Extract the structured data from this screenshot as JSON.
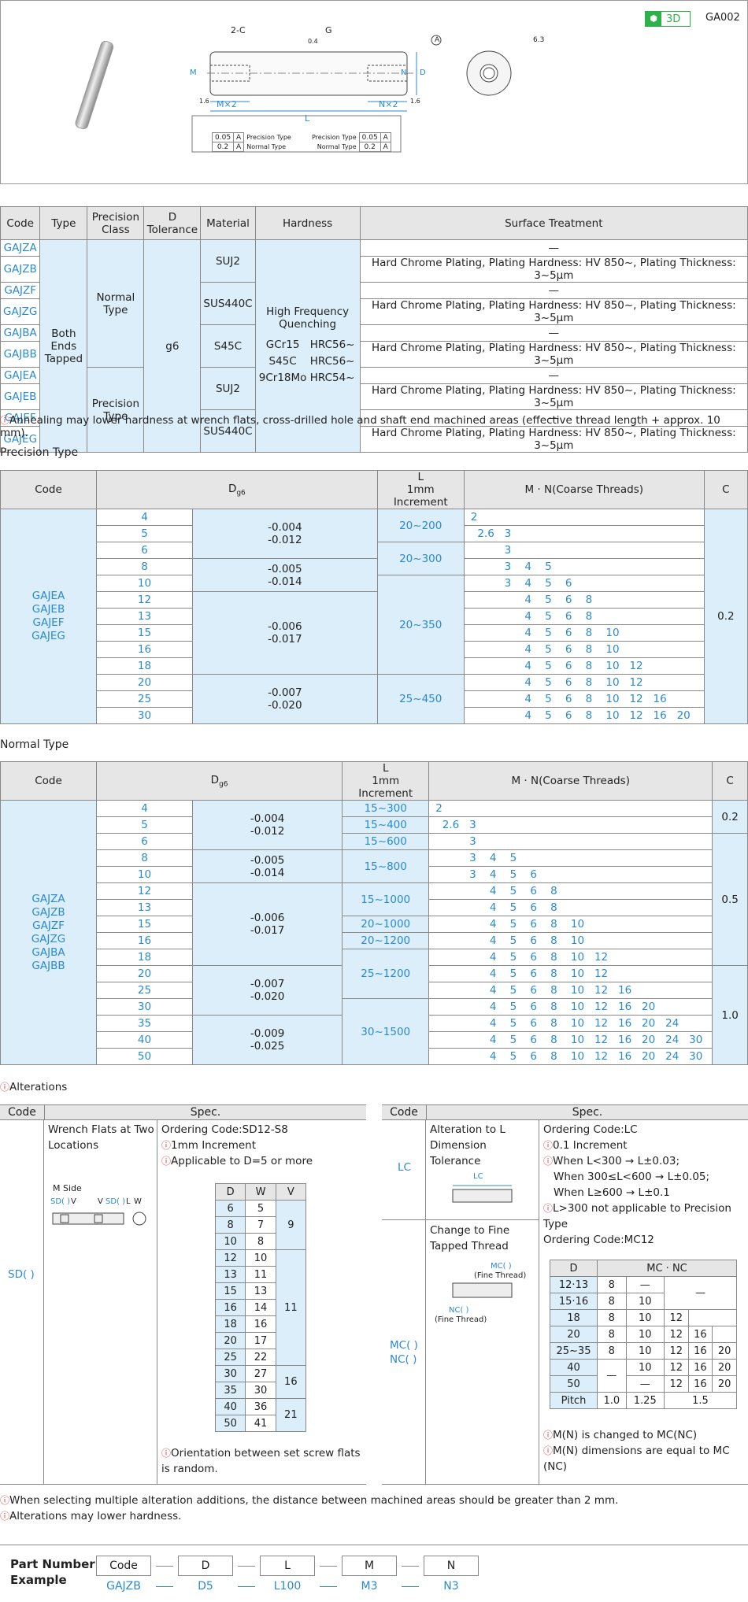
{
  "badge": {
    "label": "3D",
    "code": "GA002"
  },
  "drawing": {
    "chamfer": "2-C",
    "g": "G",
    "l": "L",
    "m": "M",
    "n": "N",
    "d": "D",
    "m2": "M×2",
    "n2": "N×2",
    "a": "A",
    "ra": "6.3",
    "r1": "0.4",
    "r2": "1.6",
    "r3": "1.6",
    "left_rows": [
      {
        "v": "0.05",
        "a": "A",
        "t": "Precision Type"
      },
      {
        "v": "0.2",
        "a": "A",
        "t": "Normal Type"
      }
    ],
    "right_rows": [
      {
        "t": "Precision Type",
        "v": "0.05",
        "a": "A"
      },
      {
        "t": "Normal Type",
        "v": "0.2",
        "a": "A"
      }
    ]
  },
  "spec_table": {
    "headers": [
      "Code",
      "Type",
      "Precision Class",
      "D Tolerance",
      "Material",
      "Hardness",
      "Surface Treatment"
    ],
    "codes": [
      "GAJZA",
      "GAJZB",
      "GAJZF",
      "GAJZG",
      "GAJBA",
      "GAJBB",
      "GAJEA",
      "GAJEB",
      "GAJEF",
      "GAJEG"
    ],
    "type": "Both Ends Tapped",
    "class_normal": "Normal Type",
    "class_precision": "Precision Type",
    "tol": "g6",
    "materials": [
      "SUJ2",
      "SUS440C",
      "S45C",
      "SUJ2",
      "SUS440C"
    ],
    "hardness_title": "High Frequency Quenching",
    "hardness_rows": [
      [
        "GCr15",
        "HRC56~"
      ],
      [
        "S45C",
        "HRC56~"
      ],
      [
        "9Cr18Mo",
        "HRC54~"
      ]
    ],
    "surface": [
      "—",
      "Hard Chrome Plating, Plating Hardness: HV 850~, Plating Thickness: 3~5μm"
    ]
  },
  "notes": {
    "annealing": "Annealing may lower hardness at wrench flats, cross-drilled hole and shaft end machined areas (effective thread length + approx. 10 mm).",
    "precision_title": "Precision Type",
    "normal_title": "Normal Type",
    "alterations_title": "Alterations",
    "multi": "When selecting multiple alteration additions, the distance between machined areas should be greater than 2 mm.",
    "lower": "Alterations may lower hardness."
  },
  "dim_headers": {
    "code": "Code",
    "d": "D",
    "dsub": "g6",
    "l": "L",
    "l2": "1mm Increment",
    "mn": "M · N(Coarse Threads)",
    "c": "C"
  },
  "precision": {
    "codes": "GAJEA\nGAJEB\nGAJEF\nGAJEG",
    "d": [
      "4",
      "5",
      "6",
      "8",
      "10",
      "12",
      "13",
      "15",
      "16",
      "18",
      "20",
      "25",
      "30"
    ],
    "tol": [
      {
        "v": "-0.004\n-0.012",
        "s": 3
      },
      {
        "v": "-0.005\n-0.014",
        "s": 2
      },
      {
        "v": "-0.006\n-0.017",
        "s": 5
      },
      {
        "v": "-0.007\n-0.020",
        "s": 3
      }
    ],
    "l": [
      {
        "v": "20~200",
        "s": 2
      },
      {
        "v": "20~300",
        "s": 2
      },
      {
        "v": "20~350",
        "s": 6
      },
      {
        "v": "25~450",
        "s": 3
      }
    ],
    "mn": [
      "2",
      "  2.6   3",
      "          3",
      "          3    4    5",
      "          3    4    5    6",
      "                4    5    6    8",
      "                4    5    6    8",
      "                4    5    6    8    10",
      "                4    5    6    8    10",
      "                4    5    6    8    10   12",
      "                4    5    6    8    10   12",
      "                4    5    6    8    10   12   16",
      "                4    5    6    8    10   12   16   20"
    ],
    "c": "0.2"
  },
  "normal": {
    "codes": "GAJZA\nGAJZB\nGAJZF\nGAJZG\nGAJBA\nGAJBB",
    "d": [
      "4",
      "5",
      "6",
      "8",
      "10",
      "12",
      "13",
      "15",
      "16",
      "18",
      "20",
      "25",
      "30",
      "35",
      "40",
      "50"
    ],
    "tol": [
      {
        "v": "-0.004\n-0.012",
        "s": 3
      },
      {
        "v": "-0.005\n-0.014",
        "s": 2
      },
      {
        "v": "-0.006\n-0.017",
        "s": 5
      },
      {
        "v": "-0.007\n-0.020",
        "s": 3
      },
      {
        "v": "-0.009\n-0.025",
        "s": 3
      }
    ],
    "l": [
      {
        "v": "15~300",
        "s": 1
      },
      {
        "v": "15~400",
        "s": 1
      },
      {
        "v": "15~600",
        "s": 1
      },
      {
        "v": "15~800",
        "s": 2
      },
      {
        "v": "15~1000",
        "s": 2
      },
      {
        "v": "20~1000",
        "s": 1
      },
      {
        "v": "20~1200",
        "s": 1
      },
      {
        "v": "25~1200",
        "s": 3
      },
      {
        "v": "30~1500",
        "s": 4
      }
    ],
    "mn": [
      "2",
      "  2.6   3",
      "          3",
      "          3    4    5",
      "          3    4    5    6",
      "                4    5    6    8",
      "                4    5    6    8",
      "                4    5    6    8    10",
      "                4    5    6    8    10",
      "                4    5    6    8    10   12",
      "                4    5    6    8    10   12",
      "                4    5    6    8    10   12   16",
      "                4    5    6    8    10   12   16   20",
      "                4    5    6    8    10   12   16   20   24",
      "                4    5    6    8    10   12   16   20   24   30",
      "                4    5    6    8    10   12   16   20   24   30"
    ],
    "c": [
      {
        "v": "0.2",
        "s": 2
      },
      {
        "v": "0.5",
        "s": 8
      },
      {
        "v": "1.0",
        "s": 6
      }
    ]
  },
  "alt_left": {
    "code_h": "Code",
    "spec_h": "Spec.",
    "code": "SD( )",
    "name": "Wrench Flats at Two Locations",
    "mside": "M Side",
    "lbl_sd1": "SD( )",
    "lbl_v1": "V",
    "lbl_v2": "V",
    "lbl_sd2": "SD( )",
    "lbl_l": "L",
    "lbl_w": "W",
    "order": "Ordering Code:SD12-S8",
    "inc": "1mm Increment",
    "appl": "Applicable to D=5 or more",
    "th": [
      "D",
      "W",
      "V"
    ],
    "rows": [
      [
        "6",
        "5"
      ],
      [
        "8",
        "7"
      ],
      [
        "10",
        "8"
      ],
      [
        "12",
        "10"
      ],
      [
        "13",
        "11"
      ],
      [
        "15",
        "13"
      ],
      [
        "16",
        "14"
      ],
      [
        "18",
        "16"
      ],
      [
        "20",
        "17"
      ],
      [
        "25",
        "22"
      ],
      [
        "30",
        "27"
      ],
      [
        "35",
        "30"
      ],
      [
        "40",
        "36"
      ],
      [
        "50",
        "41"
      ]
    ],
    "v": [
      {
        "v": "9",
        "s": 3
      },
      {
        "v": "11",
        "s": 7
      },
      {
        "v": "16",
        "s": 2
      },
      {
        "v": "21",
        "s": 2
      }
    ],
    "orient": "Orientation between set screw flats is random."
  },
  "alt_right": {
    "code_h": "Code",
    "spec_h": "Spec.",
    "lc_code": "LC",
    "mc_code": "MC( )\nNC( )",
    "lc_name": "Alteration to L Dimension Tolerance",
    "lc_lbl": "LC",
    "lc_order": "Ordering Code:LC",
    "lc_inc": "0.1 Increment",
    "lc_1": "When L<300 → L±0.03;",
    "lc_2": "When 300≤L<600 → L±0.05;",
    "lc_3": "When L≥600 → L±0.1",
    "lc_4": "L>300 not applicable to Precision Type",
    "mc_order": "Ordering Code:MC12",
    "mc_name": "Change to Fine Tapped Thread",
    "mc_lbl": "MC( )",
    "mc_fine": "(Fine Thread)",
    "nc_lbl": "NC( )",
    "nc_fine": "(Fine Thread)",
    "th_d": "D",
    "th_mc": "MC · NC",
    "rows": [
      [
        "12·13",
        "8",
        "—",
        "—",
        "",
        ""
      ],
      [
        "15·16",
        "8",
        "10",
        "",
        "",
        ""
      ],
      [
        "18",
        "8",
        "10",
        "12",
        "",
        ""
      ],
      [
        "20",
        "8",
        "10",
        "12",
        "16",
        ""
      ],
      [
        "25~35",
        "8",
        "10",
        "12",
        "16",
        "20"
      ],
      [
        "40",
        "—",
        "10",
        "12",
        "16",
        "20"
      ],
      [
        "50",
        "",
        "—",
        "12",
        "16",
        "20"
      ],
      [
        "Pitch",
        "1.0",
        "1.25",
        "1.5",
        "",
        ""
      ]
    ],
    "n1": "M(N) is changed to MC(NC)",
    "n2": "M(N) dimensions are equal to MC (NC)"
  },
  "part": {
    "title1": "Part Number",
    "title2": "Example",
    "boxes": [
      "Code",
      "D",
      "L",
      "M",
      "N"
    ],
    "vals": [
      "GAJZB",
      "D5",
      "L100",
      "M3",
      "N3"
    ]
  }
}
